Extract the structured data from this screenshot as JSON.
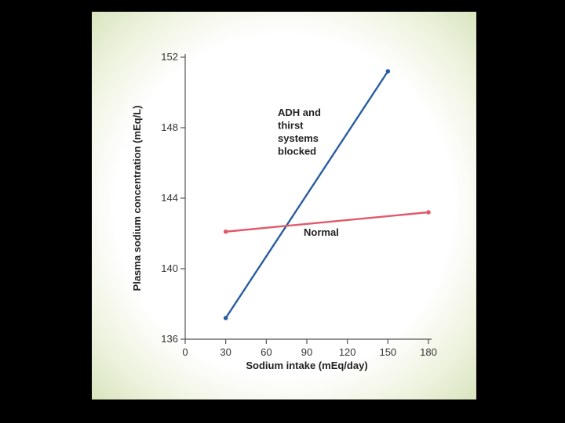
{
  "chart_data": {
    "type": "line",
    "xlabel": "Sodium intake (mEq/day)",
    "ylabel": "Plasma sodium concentration (mEq/L)",
    "xlim": [
      0,
      180
    ],
    "ylim": [
      136,
      152
    ],
    "xticks": [
      0,
      30,
      60,
      90,
      120,
      150,
      180
    ],
    "yticks": [
      136,
      140,
      144,
      148,
      152
    ],
    "grid": false,
    "series": [
      {
        "name": "ADH and thirst systems blocked",
        "color": "#2a5d9f",
        "x": [
          30,
          150
        ],
        "y": [
          137.2,
          151.2
        ]
      },
      {
        "name": "Normal",
        "color": "#e05a6a",
        "x": [
          30,
          180
        ],
        "y": [
          142.1,
          143.2
        ]
      }
    ],
    "annotations": [
      {
        "lines": [
          "ADH and",
          "thirst",
          "systems",
          "blocked"
        ],
        "series": 0
      },
      {
        "lines": [
          "Normal"
        ],
        "series": 1
      }
    ]
  }
}
